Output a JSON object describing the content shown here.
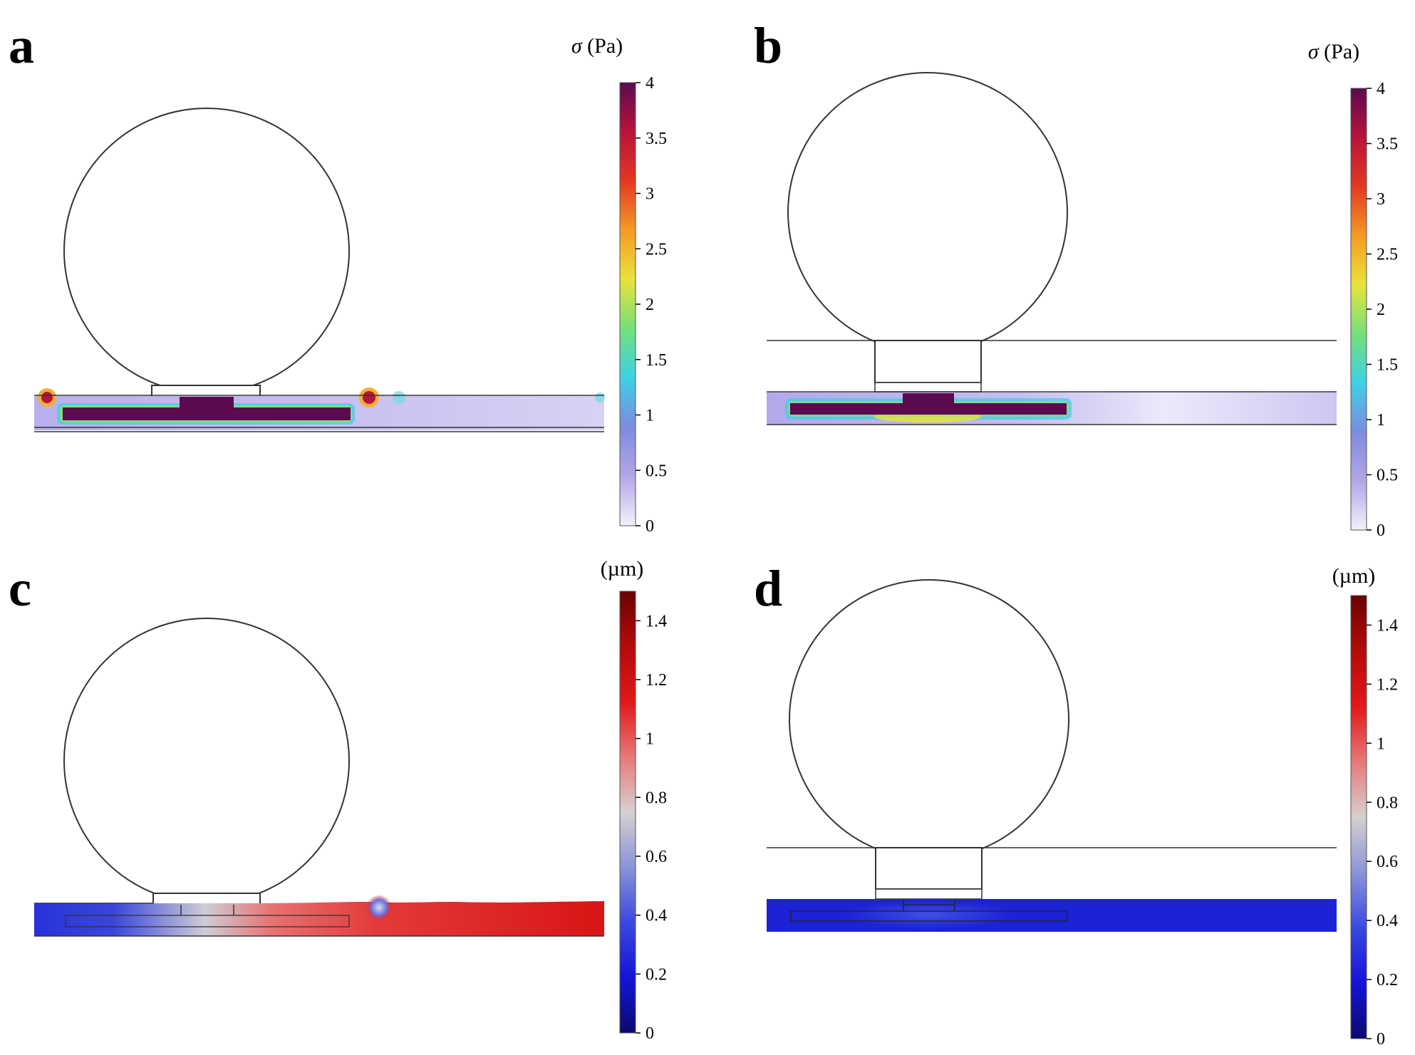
{
  "panels": [
    {
      "letter": "a",
      "colorbar": {
        "title_symbol": "σ",
        "title_unit": " (Pa)",
        "ticks": [
          "0",
          "0.5",
          "1",
          "1.5",
          "2",
          "2.5",
          "3",
          "3.5",
          "4"
        ],
        "colormap": "rainbow",
        "colors": [
          "#f3f0fa",
          "#b4a6e6",
          "#7d8be0",
          "#3ed0e6",
          "#74e07a",
          "#e9e33a",
          "#f59a25",
          "#e33822",
          "#b8133a",
          "#5b0a4f"
        ]
      }
    },
    {
      "letter": "b",
      "colorbar": {
        "title_symbol": "σ",
        "title_unit": " (Pa)",
        "ticks": [
          "0",
          "0.5",
          "1",
          "1.5",
          "2",
          "2.5",
          "3",
          "3.5",
          "4"
        ],
        "colormap": "rainbow",
        "colors": [
          "#f3f0fa",
          "#b4a6e6",
          "#7d8be0",
          "#3ed0e6",
          "#74e07a",
          "#e9e33a",
          "#f59a25",
          "#e33822",
          "#b8133a",
          "#5b0a4f"
        ]
      }
    },
    {
      "letter": "c",
      "colorbar": {
        "title_symbol": "",
        "title_unit": "(µm)",
        "ticks": [
          "0",
          "0.2",
          "0.4",
          "0.6",
          "0.8",
          "1",
          "1.2",
          "1.4"
        ],
        "colormap": "blue-white-red",
        "colors": [
          "#0a0a6e",
          "#1414d8",
          "#3a48e0",
          "#8a94d8",
          "#d6d0d0",
          "#e87878",
          "#e21818",
          "#b40a0a",
          "#6a0202"
        ]
      }
    },
    {
      "letter": "d",
      "colorbar": {
        "title_symbol": "",
        "title_unit": "(µm)",
        "ticks": [
          "0",
          "0.2",
          "0.4",
          "0.6",
          "0.8",
          "1",
          "1.2",
          "1.4"
        ],
        "colormap": "blue-white-red",
        "colors": [
          "#0a0a6e",
          "#1414d8",
          "#3a48e0",
          "#8a94d8",
          "#d6d0d0",
          "#e87878",
          "#e21818",
          "#b40a0a",
          "#6a0202"
        ]
      }
    }
  ]
}
